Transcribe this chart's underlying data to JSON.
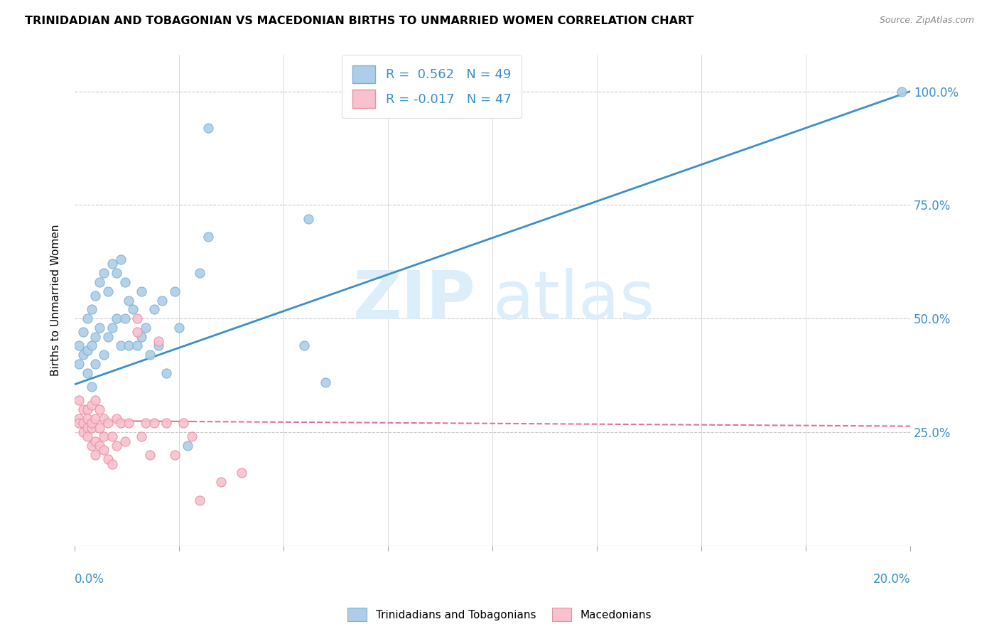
{
  "title": "TRINIDADIAN AND TOBAGONIAN VS MACEDONIAN BIRTHS TO UNMARRIED WOMEN CORRELATION CHART",
  "source": "Source: ZipAtlas.com",
  "ylabel": "Births to Unmarried Women",
  "ylabel_right_ticks": [
    0.25,
    0.5,
    0.75,
    1.0
  ],
  "ylabel_right_labels": [
    "25.0%",
    "50.0%",
    "75.0%",
    "100.0%"
  ],
  "xmin": 0.0,
  "xmax": 0.2,
  "ymin": 0.0,
  "ymax": 1.08,
  "R_blue": 0.562,
  "N_blue": 49,
  "R_pink": -0.017,
  "N_pink": 47,
  "blue_color": "#aecde8",
  "blue_edge_color": "#7ab3d4",
  "blue_line_color": "#3a8fc7",
  "pink_color": "#f9c0cf",
  "pink_edge_color": "#e8909f",
  "pink_line_color": "#e87090",
  "axis_label_color": "#3a8fc7",
  "legend_label_blue": "Trinidadians and Tobagonians",
  "legend_label_pink": "Macedonians",
  "watermark_zip": "ZIP",
  "watermark_atlas": "atlas",
  "blue_scatter_x": [
    0.001,
    0.001,
    0.002,
    0.002,
    0.003,
    0.003,
    0.003,
    0.004,
    0.004,
    0.004,
    0.005,
    0.005,
    0.005,
    0.006,
    0.006,
    0.007,
    0.007,
    0.008,
    0.008,
    0.009,
    0.009,
    0.01,
    0.01,
    0.011,
    0.011,
    0.012,
    0.012,
    0.013,
    0.013,
    0.014,
    0.015,
    0.016,
    0.016,
    0.017,
    0.018,
    0.019,
    0.02,
    0.021,
    0.022,
    0.024,
    0.025,
    0.027,
    0.03,
    0.032,
    0.055,
    0.06,
    0.032,
    0.056,
    0.198
  ],
  "blue_scatter_y": [
    0.4,
    0.44,
    0.42,
    0.47,
    0.38,
    0.43,
    0.5,
    0.35,
    0.44,
    0.52,
    0.4,
    0.46,
    0.55,
    0.48,
    0.58,
    0.42,
    0.6,
    0.46,
    0.56,
    0.48,
    0.62,
    0.5,
    0.6,
    0.44,
    0.63,
    0.5,
    0.58,
    0.44,
    0.54,
    0.52,
    0.44,
    0.46,
    0.56,
    0.48,
    0.42,
    0.52,
    0.44,
    0.54,
    0.38,
    0.56,
    0.48,
    0.22,
    0.6,
    0.68,
    0.44,
    0.36,
    0.92,
    0.72,
    1.0
  ],
  "pink_scatter_x": [
    0.001,
    0.001,
    0.001,
    0.002,
    0.002,
    0.002,
    0.003,
    0.003,
    0.003,
    0.003,
    0.004,
    0.004,
    0.004,
    0.004,
    0.005,
    0.005,
    0.005,
    0.005,
    0.006,
    0.006,
    0.006,
    0.007,
    0.007,
    0.007,
    0.008,
    0.008,
    0.009,
    0.009,
    0.01,
    0.01,
    0.011,
    0.012,
    0.013,
    0.015,
    0.015,
    0.016,
    0.017,
    0.018,
    0.019,
    0.02,
    0.022,
    0.024,
    0.026,
    0.028,
    0.03,
    0.035,
    0.04
  ],
  "pink_scatter_y": [
    0.28,
    0.32,
    0.27,
    0.25,
    0.3,
    0.27,
    0.26,
    0.24,
    0.3,
    0.28,
    0.22,
    0.26,
    0.31,
    0.27,
    0.2,
    0.23,
    0.28,
    0.32,
    0.22,
    0.26,
    0.3,
    0.21,
    0.28,
    0.24,
    0.19,
    0.27,
    0.18,
    0.24,
    0.22,
    0.28,
    0.27,
    0.23,
    0.27,
    0.5,
    0.47,
    0.24,
    0.27,
    0.2,
    0.27,
    0.45,
    0.27,
    0.2,
    0.27,
    0.24,
    0.1,
    0.14,
    0.16
  ]
}
